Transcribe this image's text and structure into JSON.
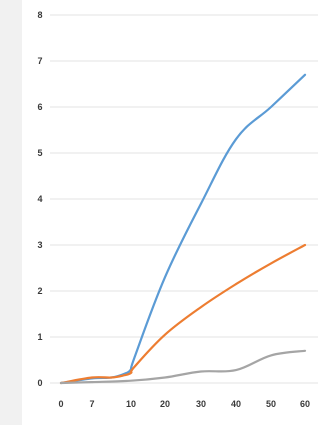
{
  "chart_data": {
    "type": "line",
    "title": "",
    "xlabel": "",
    "ylabel": "",
    "x_ticks": [
      "0",
      "7",
      "10",
      "20",
      "30",
      "40",
      "50",
      "60"
    ],
    "y_ticks": [
      "0",
      "1",
      "2",
      "3",
      "4",
      "5",
      "6",
      "7",
      "8"
    ],
    "ylim": [
      0,
      8
    ],
    "grid": true,
    "legend": "none",
    "series": [
      {
        "color": "#5b9bd5",
        "points": [
          [
            0,
            0
          ],
          [
            7,
            0.1
          ],
          [
            8.5,
            0.12
          ],
          [
            9.5,
            0.2
          ],
          [
            10,
            0.3
          ],
          [
            11,
            0.55
          ],
          [
            20,
            2.3
          ],
          [
            30,
            3.9
          ],
          [
            40,
            5.3
          ],
          [
            50,
            6.0
          ],
          [
            60,
            6.7
          ]
        ]
      },
      {
        "color": "#ed7d31",
        "points": [
          [
            0,
            0
          ],
          [
            7,
            0.12
          ],
          [
            8.5,
            0.12
          ],
          [
            9.5,
            0.17
          ],
          [
            10,
            0.22
          ],
          [
            11,
            0.35
          ],
          [
            20,
            1.05
          ],
          [
            30,
            1.65
          ],
          [
            40,
            2.15
          ],
          [
            50,
            2.6
          ],
          [
            60,
            3.0
          ]
        ]
      },
      {
        "color": "#a5a5a5",
        "points": [
          [
            0,
            0
          ],
          [
            7,
            0.02
          ],
          [
            10,
            0.05
          ],
          [
            20,
            0.12
          ],
          [
            30,
            0.25
          ],
          [
            40,
            0.28
          ],
          [
            50,
            0.6
          ],
          [
            60,
            0.7
          ]
        ]
      }
    ]
  }
}
